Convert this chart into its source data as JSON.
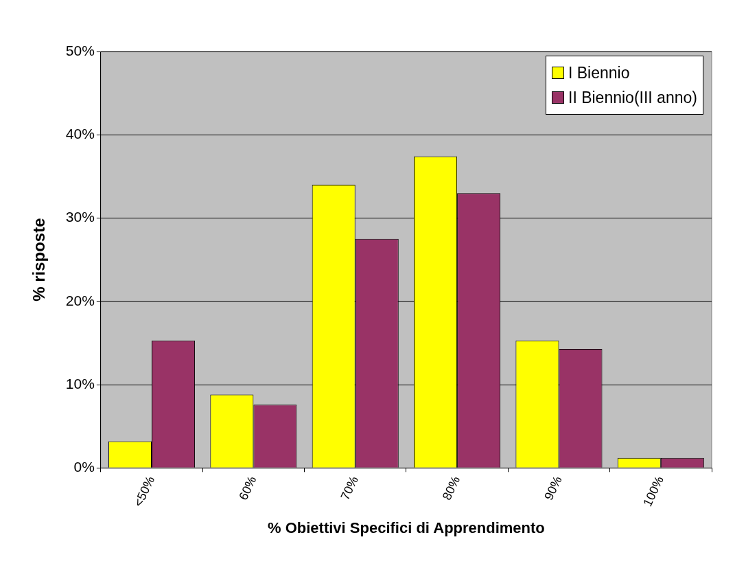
{
  "chart_data": {
    "type": "bar",
    "xlabel": "% Obiettivi Specifici di Apprendimento",
    "ylabel": "% risposte",
    "categories": [
      "<50%",
      "60%",
      "70%",
      "80%",
      "90%",
      "100%"
    ],
    "series": [
      {
        "name": "I Biennio",
        "color": "#ffff00",
        "values": [
          3.2,
          8.8,
          34.0,
          37.4,
          15.3,
          1.2
        ]
      },
      {
        "name": "II Biennio(III anno)",
        "color": "#993366",
        "values": [
          15.3,
          7.6,
          27.5,
          33.0,
          14.3,
          1.2
        ]
      }
    ],
    "ylim": [
      0,
      50
    ],
    "yticks": [
      {
        "value": 0,
        "label": "0%"
      },
      {
        "value": 10,
        "label": "10%"
      },
      {
        "value": 20,
        "label": "20%"
      },
      {
        "value": 30,
        "label": "30%"
      },
      {
        "value": 40,
        "label": "40%"
      },
      {
        "value": 50,
        "label": "50%"
      }
    ],
    "grid": "y",
    "legend": "top right"
  }
}
